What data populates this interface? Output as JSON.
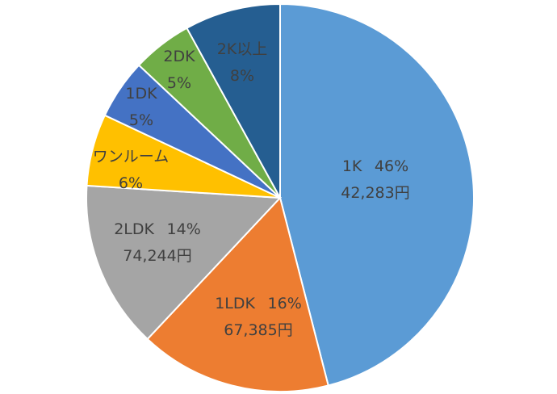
{
  "chart_data": {
    "type": "pie",
    "start_angle_deg": 0,
    "direction": "clockwise",
    "slices": [
      {
        "key": "1k",
        "label": "1K",
        "percent": 46,
        "percent_text": "46%",
        "amount": "42,283円",
        "color": "#5b9bd5",
        "text_color": "#404040"
      },
      {
        "key": "1ldk",
        "label": "1LDK",
        "percent": 16,
        "percent_text": "16%",
        "amount": "67,385円",
        "color": "#ed7d31",
        "text_color": "#404040"
      },
      {
        "key": "2ldk",
        "label": "2LDK",
        "percent": 14,
        "percent_text": "14%",
        "amount": "74,244円",
        "color": "#a5a5a5",
        "text_color": "#404040"
      },
      {
        "key": "oneroom",
        "label": "ワンルーム",
        "percent": 6,
        "percent_text": "6%",
        "amount": null,
        "color": "#ffc000",
        "text_color": "#404040"
      },
      {
        "key": "1dk",
        "label": "1DK",
        "percent": 5,
        "percent_text": "5%",
        "amount": null,
        "color": "#4472c4",
        "text_color": "#404040"
      },
      {
        "key": "2dk",
        "label": "2DK",
        "percent": 5,
        "percent_text": "5%",
        "amount": null,
        "color": "#70ad47",
        "text_color": "#404040"
      },
      {
        "key": "2kplus",
        "label": "2K以上",
        "percent": 8,
        "percent_text": "8%",
        "amount": null,
        "color": "#255e91",
        "text_color": "#404040"
      }
    ]
  }
}
